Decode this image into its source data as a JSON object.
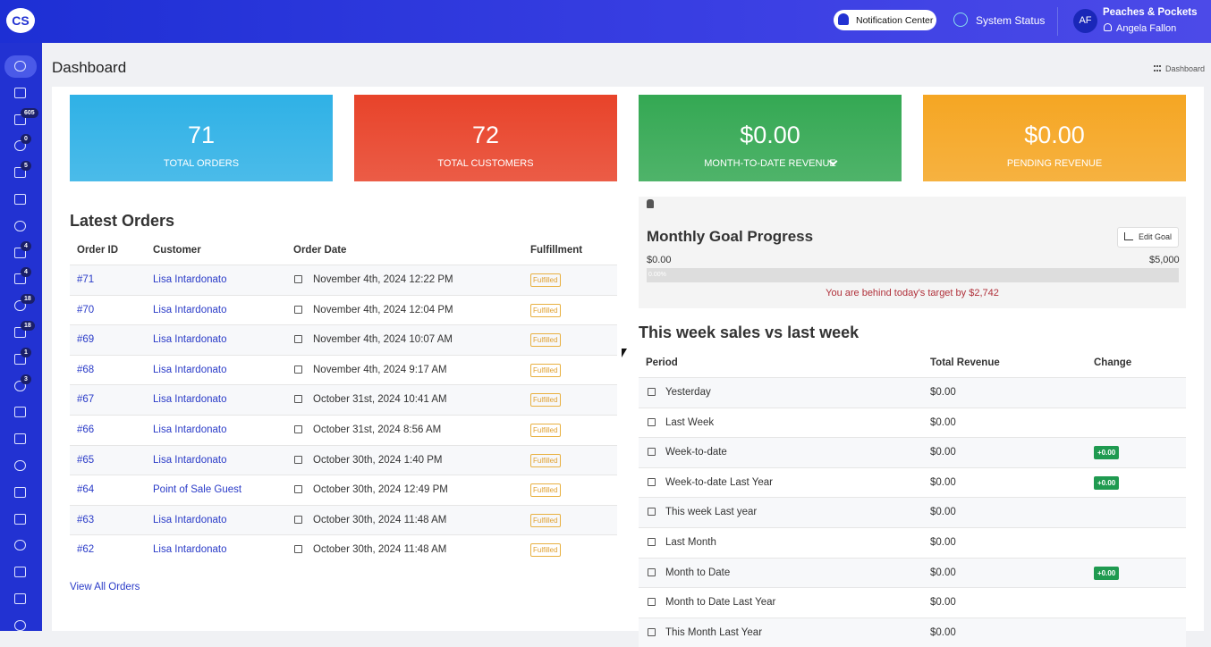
{
  "header": {
    "logo": "CS",
    "notification_center": "Notification Center",
    "system_status": "System Status",
    "user_initials": "AF",
    "store": "Peaches & Pockets",
    "user_name": "Angela Fallon"
  },
  "sidebar": {
    "badges": [
      {
        "icon": 2,
        "count": 605
      },
      {
        "icon": 3,
        "count": 0
      },
      {
        "icon": 4,
        "count": 5
      },
      {
        "icon": 7,
        "count": 4
      },
      {
        "icon": 8,
        "count": 4
      },
      {
        "icon": 9,
        "count": 18
      },
      {
        "icon": 10,
        "count": 18
      },
      {
        "icon": 11,
        "count": 1
      },
      {
        "icon": 12,
        "count": 3
      }
    ]
  },
  "page": {
    "title": "Dashboard",
    "breadcrumb": "Dashboard"
  },
  "stats": [
    {
      "value": "71",
      "label": "TOTAL ORDERS",
      "color": "#2fb1e6"
    },
    {
      "value": "72",
      "label": "TOTAL CUSTOMERS",
      "color": "#e8432a"
    },
    {
      "value": "$0.00",
      "label": "MONTH-TO-DATE REVENUE",
      "color": "#34a853"
    },
    {
      "value": "$0.00",
      "label": "PENDING REVENUE",
      "color": "#f5a623"
    }
  ],
  "latest_orders": {
    "title": "Latest Orders",
    "columns": [
      "Order ID",
      "Customer",
      "Order Date",
      "Fulfillment"
    ],
    "rows": [
      [
        "#71",
        "Lisa Intardonato",
        "November 4th, 2024 12:22 PM",
        "Fulfilled"
      ],
      [
        "#70",
        "Lisa Intardonato",
        "November 4th, 2024 12:04 PM",
        "Fulfilled"
      ],
      [
        "#69",
        "Lisa Intardonato",
        "November 4th, 2024 10:07 AM",
        "Fulfilled"
      ],
      [
        "#68",
        "Lisa Intardonato",
        "November 4th, 2024 9:17 AM",
        "Fulfilled"
      ],
      [
        "#67",
        "Lisa Intardonato",
        "October 31st, 2024 10:41 AM",
        "Fulfilled"
      ],
      [
        "#66",
        "Lisa Intardonato",
        "October 31st, 2024 8:56 AM",
        "Fulfilled"
      ],
      [
        "#65",
        "Lisa Intardonato",
        "October 30th, 2024 1:40 PM",
        "Fulfilled"
      ],
      [
        "#64",
        "Point of Sale Guest",
        "October 30th, 2024 12:49 PM",
        "Fulfilled"
      ],
      [
        "#63",
        "Lisa Intardonato",
        "October 30th, 2024 11:48 AM",
        "Fulfilled"
      ],
      [
        "#62",
        "Lisa Intardonato",
        "October 30th, 2024 11:48 AM",
        "Fulfilled"
      ]
    ],
    "link": "View All Orders"
  },
  "goal": {
    "title": "Monthly Goal Progress",
    "edit": "Edit Goal",
    "min": "$0.00",
    "max": "$5,000",
    "progress": "0.00%",
    "message": "You are behind today's target by $2,742"
  },
  "weekly": {
    "title": "This week sales vs last week",
    "columns": [
      "Period",
      "Total Revenue",
      "Change"
    ],
    "rows": [
      {
        "period": "Yesterday",
        "revenue": "$0.00"
      },
      {
        "period": "Last Week",
        "revenue": "$0.00"
      },
      {
        "period": "Week-to-date",
        "revenue": "$0.00",
        "change": "+0.00"
      },
      {
        "period": "Week-to-date Last Year",
        "revenue": "$0.00",
        "change": "+0.00"
      },
      {
        "period": "This week Last year",
        "revenue": "$0.00"
      },
      {
        "period": "Last Month",
        "revenue": "$0.00"
      },
      {
        "period": "Month to Date",
        "revenue": "$0.00",
        "change": "+0.00"
      },
      {
        "period": "Month to Date Last Year",
        "revenue": "$0.00"
      },
      {
        "period": "This Month Last Year",
        "revenue": "$0.00"
      }
    ]
  }
}
